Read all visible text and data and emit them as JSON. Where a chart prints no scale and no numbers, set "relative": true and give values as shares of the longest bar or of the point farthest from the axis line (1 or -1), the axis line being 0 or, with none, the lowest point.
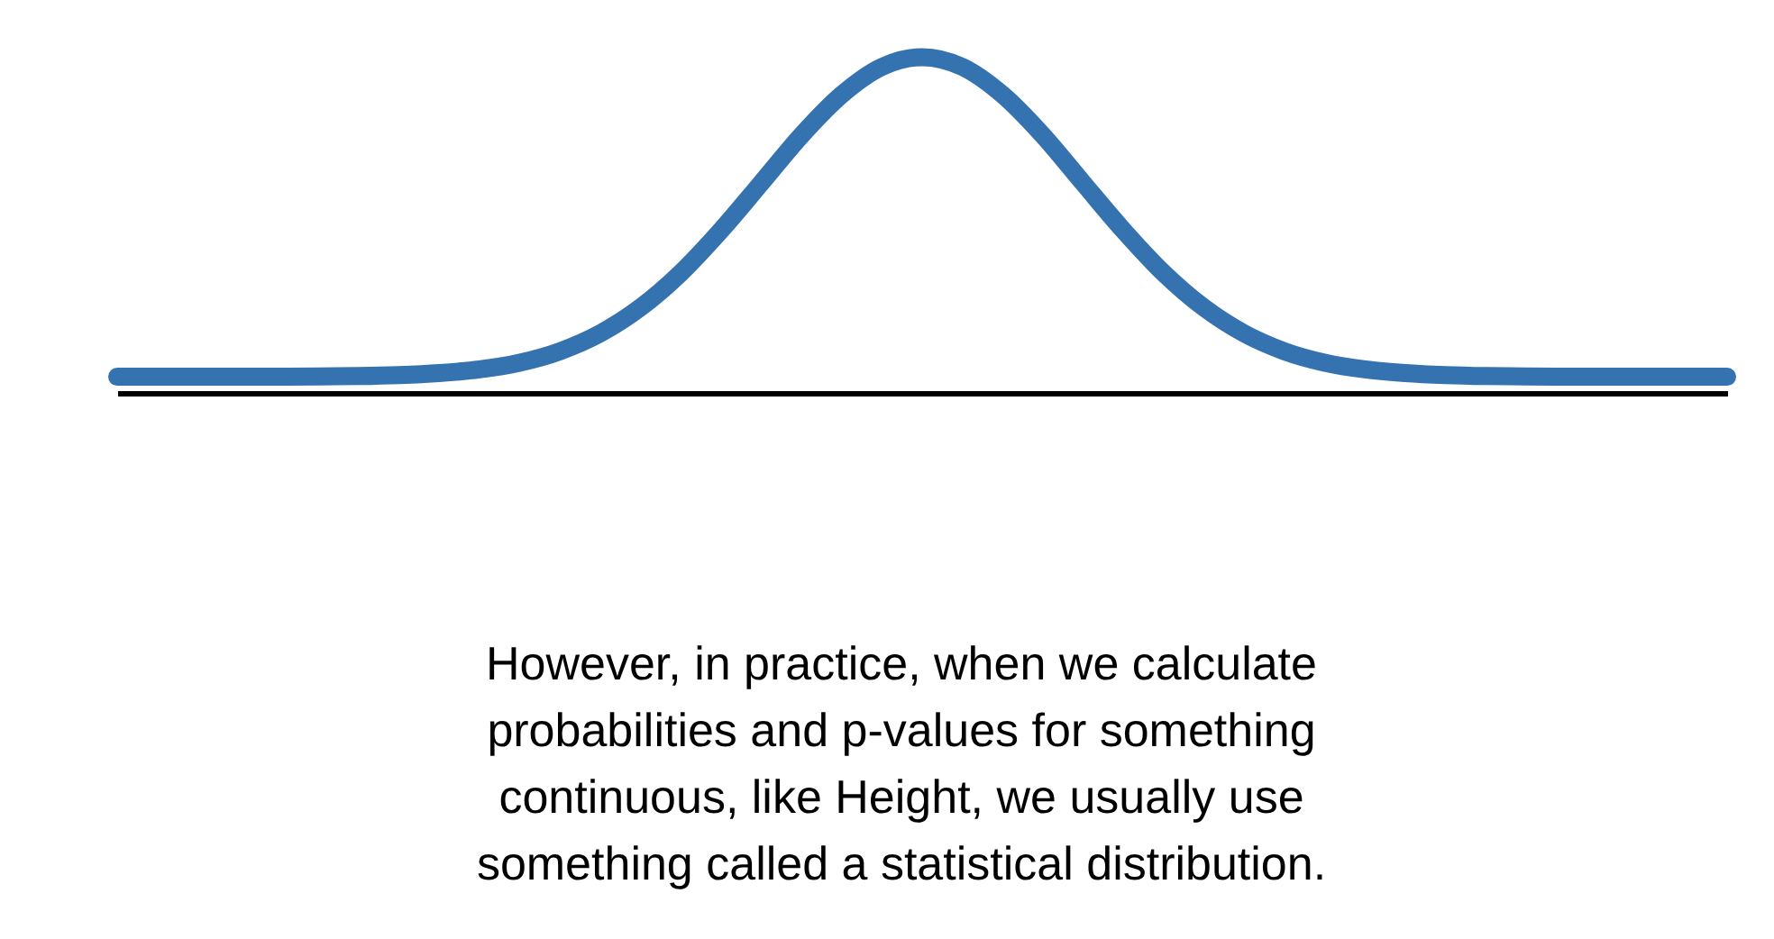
{
  "chart_data": {
    "type": "line",
    "relative": true,
    "categories": [
      null,
      null,
      null,
      null,
      null,
      null,
      null,
      null,
      null,
      null,
      null,
      null,
      null,
      null,
      null,
      null,
      null,
      null,
      null,
      null,
      null,
      null,
      null,
      null,
      null,
      null,
      null,
      null,
      null,
      null,
      null,
      null,
      null,
      null,
      null,
      null,
      null,
      null,
      null,
      null,
      null
    ],
    "values": [
      0.048,
      0.048,
      0.048,
      0.048,
      0.048,
      0.049,
      0.05,
      0.053,
      0.059,
      0.07,
      0.09,
      0.124,
      0.177,
      0.254,
      0.357,
      0.484,
      0.625,
      0.767,
      0.888,
      0.971,
      1,
      0.971,
      0.888,
      0.767,
      0.625,
      0.484,
      0.357,
      0.254,
      0.177,
      0.124,
      0.09,
      0.07,
      0.059,
      0.053,
      0.05,
      0.049,
      0.048,
      0.048,
      0.048,
      0.048,
      0.048
    ],
    "color": "#3572b0",
    "annotations": [
      "However, in practice, when we calculate probabilities and p-values for something continuous, like Height, we usually use something called a statistical distribution."
    ]
  }
}
